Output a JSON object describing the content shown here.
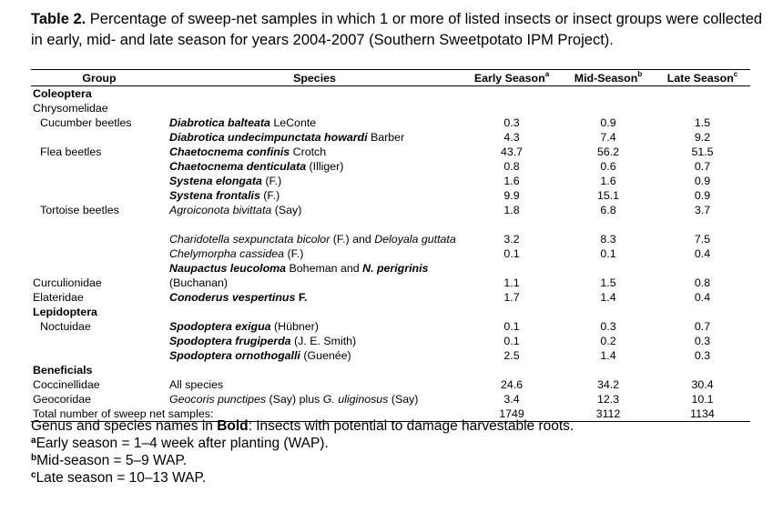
{
  "caption": {
    "label": "Table 2.",
    "text": " Percentage of sweep-net samples in which 1 or more of listed insects or insect groups were collected in early, mid- and late season for years 2004-2007 (Southern Sweetpotato IPM Project)."
  },
  "headers": {
    "group": "Group",
    "species": "Species",
    "early": "Early Season",
    "early_sup": "a",
    "mid": "Mid-Season",
    "mid_sup": "b",
    "late": "Late Season",
    "late_sup": "c"
  },
  "rows": [
    {
      "type": "section",
      "group": "Coleoptera"
    },
    {
      "type": "family",
      "group": "Chrysomelidae"
    },
    {
      "type": "data",
      "group": "Cucumber beetles",
      "species": [
        {
          "t": "Diabrotica balteata",
          "s": "bi"
        },
        {
          "t": " LeConte",
          "s": "n"
        }
      ],
      "early": "0.3",
      "mid": "0.9",
      "late": "1.5"
    },
    {
      "type": "data",
      "group": "",
      "species": [
        {
          "t": "Diabrotica undecimpunctata howardi",
          "s": "bi"
        },
        {
          "t": " Barber",
          "s": "n"
        }
      ],
      "early": "4.3",
      "mid": "7.4",
      "late": "9.2"
    },
    {
      "type": "data",
      "group": "Flea beetles",
      "species": [
        {
          "t": "Chaetocnema confinis",
          "s": "bi"
        },
        {
          "t": " Crotch",
          "s": "n"
        }
      ],
      "early": "43.7",
      "mid": "56.2",
      "late": "51.5"
    },
    {
      "type": "data",
      "group": "",
      "species": [
        {
          "t": "Chaetocnema denticulata",
          "s": "bi"
        },
        {
          "t": " (Illiger)",
          "s": "n"
        }
      ],
      "early": "0.8",
      "mid": "0.6",
      "late": "0.7"
    },
    {
      "type": "data",
      "group": "",
      "species": [
        {
          "t": "Systena elongata",
          "s": "bi"
        },
        {
          "t": " (F.)",
          "s": "n"
        }
      ],
      "early": "1.6",
      "mid": "1.6",
      "late": "0.9"
    },
    {
      "type": "data",
      "group": "",
      "species": [
        {
          "t": "Systena frontalis",
          "s": "bi"
        },
        {
          "t": " (F.)",
          "s": "n"
        }
      ],
      "early": "9.9",
      "mid": "15.1",
      "late": "0.9"
    },
    {
      "type": "data",
      "group": "Tortoise beetles",
      "species": [
        {
          "t": "Agroiconota bivittata",
          "s": "i"
        },
        {
          "t": " (Say)",
          "s": "n"
        }
      ],
      "early": "1.8",
      "mid": "6.8",
      "late": "3.7"
    },
    {
      "type": "data",
      "tall": true,
      "group": "",
      "species": [
        {
          "t": "Charidotella sexpunctata bicolor",
          "s": "i"
        },
        {
          "t": " (F.) and ",
          "s": "n"
        },
        {
          "t": "Deloyala guttata",
          "s": "i"
        }
      ],
      "early": "3.2",
      "mid": "8.3",
      "late": "7.5"
    },
    {
      "type": "data",
      "group": "",
      "species": [
        {
          "t": "Chelymorpha cassidea",
          "s": "i"
        },
        {
          "t": " (F.)",
          "s": "n"
        }
      ],
      "early": "0.1",
      "mid": "0.1",
      "late": "0.4"
    },
    {
      "type": "data",
      "tall": true,
      "fam": true,
      "group": "Curculionidae",
      "species": [
        {
          "t": "Naupactus leucoloma",
          "s": "bi"
        },
        {
          "t": " Boheman  and ",
          "s": "n"
        },
        {
          "t": "N. perigrinis",
          "s": "bi"
        },
        {
          "t": " (Buchanan)",
          "s": "n"
        }
      ],
      "early": "1.1",
      "mid": "1.5",
      "late": "0.8"
    },
    {
      "type": "data",
      "fam": true,
      "group": "Elateridae",
      "species": [
        {
          "t": "Conoderus vespertinus",
          "s": "bi"
        },
        {
          "t": " F.",
          "s": "b"
        }
      ],
      "early": "1.7",
      "mid": "1.4",
      "late": "0.4"
    },
    {
      "type": "section",
      "group": "Lepidoptera"
    },
    {
      "type": "data",
      "group": "Noctuidae",
      "species": [
        {
          "t": "Spodoptera exigua",
          "s": "bi"
        },
        {
          "t": " (Hübner)",
          "s": "n"
        }
      ],
      "early": "0.1",
      "mid": "0.3",
      "late": "0.7"
    },
    {
      "type": "data",
      "group": "",
      "species": [
        {
          "t": "Spodoptera frugiperda",
          "s": "bi"
        },
        {
          "t": " (J. E. Smith)",
          "s": "n"
        }
      ],
      "early": "0.1",
      "mid": "0.2",
      "late": "0.3"
    },
    {
      "type": "data",
      "group": "",
      "species": [
        {
          "t": "Spodoptera ornothogalli",
          "s": "bi"
        },
        {
          "t": " (Guenée)",
          "s": "n"
        }
      ],
      "early": "2.5",
      "mid": "1.4",
      "late": "0.3"
    },
    {
      "type": "section",
      "group": "Beneficials"
    },
    {
      "type": "data",
      "fam": true,
      "group": "Coccinellidae",
      "species": [
        {
          "t": "All species",
          "s": "n"
        }
      ],
      "early": "24.6",
      "mid": "34.2",
      "late": "30.4"
    },
    {
      "type": "data",
      "fam": true,
      "group": "Geocoridae",
      "species": [
        {
          "t": "Geocoris punctipes",
          "s": "i"
        },
        {
          "t": " (Say)  plus ",
          "s": "n"
        },
        {
          "t": "G. uliginosus",
          "s": "i"
        },
        {
          "t": " (Say)",
          "s": "n"
        }
      ],
      "early": "3.4",
      "mid": "12.3",
      "late": "10.1"
    }
  ],
  "total": {
    "label": "Total number of sweep net samples:",
    "early": "1749",
    "mid": "3112",
    "late": "1134"
  },
  "footnotes": {
    "bold_note_pre": "Genus and species names in ",
    "bold_word": "Bold",
    "bold_note_post": ": Insects with potential to damage harvestable roots.",
    "a_mark": "a",
    "a_text": "Early season = 1–4 week after planting (WAP).",
    "b_mark": "b",
    "b_text": "Mid-season = 5–9 WAP.",
    "c_mark": "c",
    "c_text": "Late season = 10–13 WAP."
  }
}
